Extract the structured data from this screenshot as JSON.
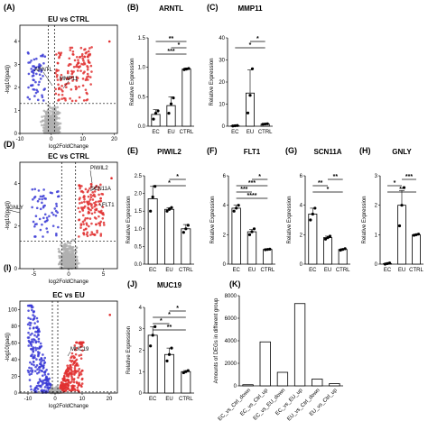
{
  "chart_data": [
    {
      "label": "(A)",
      "type": "scatter",
      "title": "EU vs CTRL",
      "xlabel": "log2FoldChange",
      "ylabel": "-log10(padj)",
      "xlim": [
        -10,
        21
      ],
      "ylim": [
        0,
        4.7
      ],
      "xticks": [
        -10,
        0,
        10,
        20
      ],
      "yticks": [
        0,
        1,
        2,
        3,
        4
      ],
      "vlines": [
        -1,
        1
      ],
      "hline": 1.3,
      "annotations": [
        "ARNTL",
        "MMP11"
      ],
      "groups": {
        "down": "#3b3bd6",
        "up": "#e03030",
        "ns": "#b0b0b0"
      }
    },
    {
      "label": "(B)",
      "type": "bar",
      "title": "ARNTL",
      "ylabel": "Relative Expression",
      "categories": [
        "EC",
        "EU",
        "CTRL"
      ],
      "values": [
        0.2,
        0.35,
        0.97
      ],
      "errors": [
        0.08,
        0.15,
        0.02
      ],
      "ylim": [
        0,
        1.5
      ],
      "yticks": [
        0.0,
        0.5,
        1.0,
        1.5
      ],
      "points": [
        [
          0.12,
          0.22,
          0.26
        ],
        [
          0.22,
          0.38,
          0.48
        ],
        [
          0.96,
          0.97,
          0.98
        ]
      ],
      "significance": [
        {
          "pair": [
            0,
            2
          ],
          "stars": "***"
        },
        {
          "pair": [
            1,
            2
          ],
          "stars": "*"
        },
        {
          "pair": [
            0,
            2
          ],
          "stars": "**"
        }
      ]
    },
    {
      "label": "(C)",
      "type": "bar",
      "title": "MMP11",
      "ylabel": "Relative Expression",
      "categories": [
        "EC",
        "EU",
        "CTRL"
      ],
      "values": [
        0.2,
        15,
        1
      ],
      "errors": [
        0.1,
        10.5,
        0.2
      ],
      "ylim": [
        0,
        40
      ],
      "yticks": [
        0,
        10,
        20,
        30,
        40
      ],
      "points": [
        [
          0.1,
          0.2,
          0.3
        ],
        [
          6,
          14,
          26
        ],
        [
          0.9,
          1.0,
          1.1
        ]
      ],
      "significance": [
        {
          "pair": [
            0,
            2
          ],
          "stars": "*"
        },
        {
          "pair": [
            1,
            2
          ],
          "stars": "*"
        }
      ]
    },
    {
      "label": "(D)",
      "type": "scatter",
      "title": "EC vs CTRL",
      "xlabel": "log2FoldChange",
      "ylabel": "-log10(padj)",
      "xlim": [
        -7,
        7
      ],
      "ylim": [
        0,
        5
      ],
      "xticks": [
        -5,
        0,
        5
      ],
      "yticks": [
        0,
        2,
        4
      ],
      "vlines": [
        -1,
        1
      ],
      "hline": 1.3,
      "annotations": [
        "PIWIL2",
        "SCN11A",
        "FLT1",
        "GNLY"
      ],
      "groups": {
        "down": "#3b3bd6",
        "up": "#e03030",
        "ns": "#b0b0b0"
      }
    },
    {
      "label": "(E)",
      "type": "bar",
      "title": "PIWIL2",
      "ylabel": "Relative Expression",
      "categories": [
        "EC",
        "EU",
        "CTRL"
      ],
      "values": [
        1.85,
        1.55,
        1.0
      ],
      "errors": [
        0.35,
        0.05,
        0.12
      ],
      "ylim": [
        0,
        2.5
      ],
      "yticks": [
        0.0,
        0.5,
        1.0,
        1.5,
        2.0,
        2.5
      ],
      "points": [
        [
          1.5,
          1.9,
          2.2
        ],
        [
          1.5,
          1.55,
          1.6
        ],
        [
          0.9,
          1.0,
          1.1
        ]
      ],
      "significance": [
        {
          "pair": [
            0,
            2
          ],
          "stars": "*"
        },
        {
          "pair": [
            1,
            2
          ],
          "stars": "*"
        }
      ]
    },
    {
      "label": "(F)",
      "type": "bar",
      "title": "FLT1",
      "ylabel": "Relative Expression",
      "categories": [
        "EC",
        "EU",
        "CTRL"
      ],
      "values": [
        3.8,
        2.2,
        1.0
      ],
      "errors": [
        0.2,
        0.15,
        0.02
      ],
      "ylim": [
        0,
        6
      ],
      "yticks": [
        0,
        2,
        4,
        6
      ],
      "points": [
        [
          3.6,
          3.8,
          4.0
        ],
        [
          2.0,
          2.2,
          2.4
        ],
        [
          0.98,
          1.0,
          1.02
        ]
      ],
      "significance": [
        {
          "pair": [
            0,
            2
          ],
          "stars": "****"
        },
        {
          "pair": [
            0,
            1
          ],
          "stars": "***"
        },
        {
          "pair": [
            0,
            2
          ],
          "stars": "***"
        },
        {
          "pair": [
            1,
            2
          ],
          "stars": "*"
        }
      ]
    },
    {
      "label": "(G)",
      "type": "bar",
      "title": "SCN11A",
      "ylabel": "Relative Expression",
      "categories": [
        "EC",
        "EU",
        "CTRL"
      ],
      "values": [
        3.4,
        1.8,
        1.0
      ],
      "errors": [
        0.4,
        0.1,
        0.05
      ],
      "ylim": [
        0,
        6
      ],
      "yticks": [
        0,
        2,
        4,
        6
      ],
      "points": [
        [
          3.0,
          3.4,
          3.8
        ],
        [
          1.7,
          1.8,
          1.9
        ],
        [
          0.95,
          1.0,
          1.05
        ]
      ],
      "significance": [
        {
          "pair": [
            0,
            2
          ],
          "stars": "*"
        },
        {
          "pair": [
            0,
            1
          ],
          "stars": "**"
        },
        {
          "pair": [
            1,
            2
          ],
          "stars": "**"
        }
      ]
    },
    {
      "label": "(H)",
      "type": "bar",
      "title": "GNLY",
      "ylabel": "Relative Expression",
      "categories": [
        "EC",
        "EU",
        "CTRL"
      ],
      "values": [
        0.02,
        2.0,
        1.0
      ],
      "errors": [
        0.02,
        0.5,
        0.02
      ],
      "ylim": [
        0,
        3
      ],
      "yticks": [
        0,
        1,
        2,
        3
      ],
      "points": [
        [
          0.0,
          0.02,
          0.04
        ],
        [
          1.3,
          2.0,
          2.6
        ],
        [
          0.98,
          1.0,
          1.02
        ]
      ],
      "significance": [
        {
          "pair": [
            0,
            2
          ],
          "stars": "**"
        },
        {
          "pair": [
            0,
            1
          ],
          "stars": "*"
        },
        {
          "pair": [
            1,
            2
          ],
          "stars": "***"
        }
      ]
    },
    {
      "label": "(I)",
      "type": "scatter",
      "title": "EC vs EU",
      "xlabel": "log2FoldChange",
      "ylabel": "-log10(padj)",
      "xlim": [
        -13,
        23
      ],
      "ylim": [
        0,
        110
      ],
      "xticks": [
        -10,
        0,
        10,
        20
      ],
      "yticks": [
        0,
        20,
        40,
        60,
        80,
        100
      ],
      "vlines": [
        -1,
        1
      ],
      "hline": 1.3,
      "annotations": [
        "MUC19"
      ],
      "groups": {
        "down": "#3b3bd6",
        "up": "#e03030",
        "ns": "#b0b0b0"
      }
    },
    {
      "label": "(J)",
      "type": "bar",
      "title": "MUC19",
      "ylabel": "Relative Expression",
      "categories": [
        "EC",
        "EU",
        "CTRL"
      ],
      "values": [
        2.7,
        1.8,
        1.0
      ],
      "errors": [
        0.4,
        0.3,
        0.05
      ],
      "ylim": [
        0,
        4
      ],
      "yticks": [
        0,
        1,
        2,
        3,
        4
      ],
      "points": [
        [
          2.2,
          2.7,
          3.1
        ],
        [
          1.5,
          1.8,
          2.1
        ],
        [
          0.95,
          1.0,
          1.05
        ]
      ],
      "significance": [
        {
          "pair": [
            0,
            2
          ],
          "stars": "**"
        },
        {
          "pair": [
            0,
            1
          ],
          "stars": "*"
        },
        {
          "pair": [
            0,
            2
          ],
          "stars": "*"
        },
        {
          "pair": [
            1,
            2
          ],
          "stars": "*"
        }
      ]
    },
    {
      "label": "(K)",
      "type": "bar",
      "title": "",
      "ylabel": "Amounts of DEGs in different group",
      "categories": [
        "EC_vs_Ctrl_down",
        "EC_vs_Ctrl_up",
        "EC_vs_EU_down",
        "EC_vs_EU_up",
        "EU_vs_Ctrl_down",
        "EU_vs_Ctrl_up"
      ],
      "values": [
        100,
        3900,
        1200,
        7300,
        600,
        200
      ],
      "ylim": [
        0,
        8000
      ],
      "yticks": [
        0,
        2000,
        4000,
        6000,
        8000
      ]
    }
  ]
}
